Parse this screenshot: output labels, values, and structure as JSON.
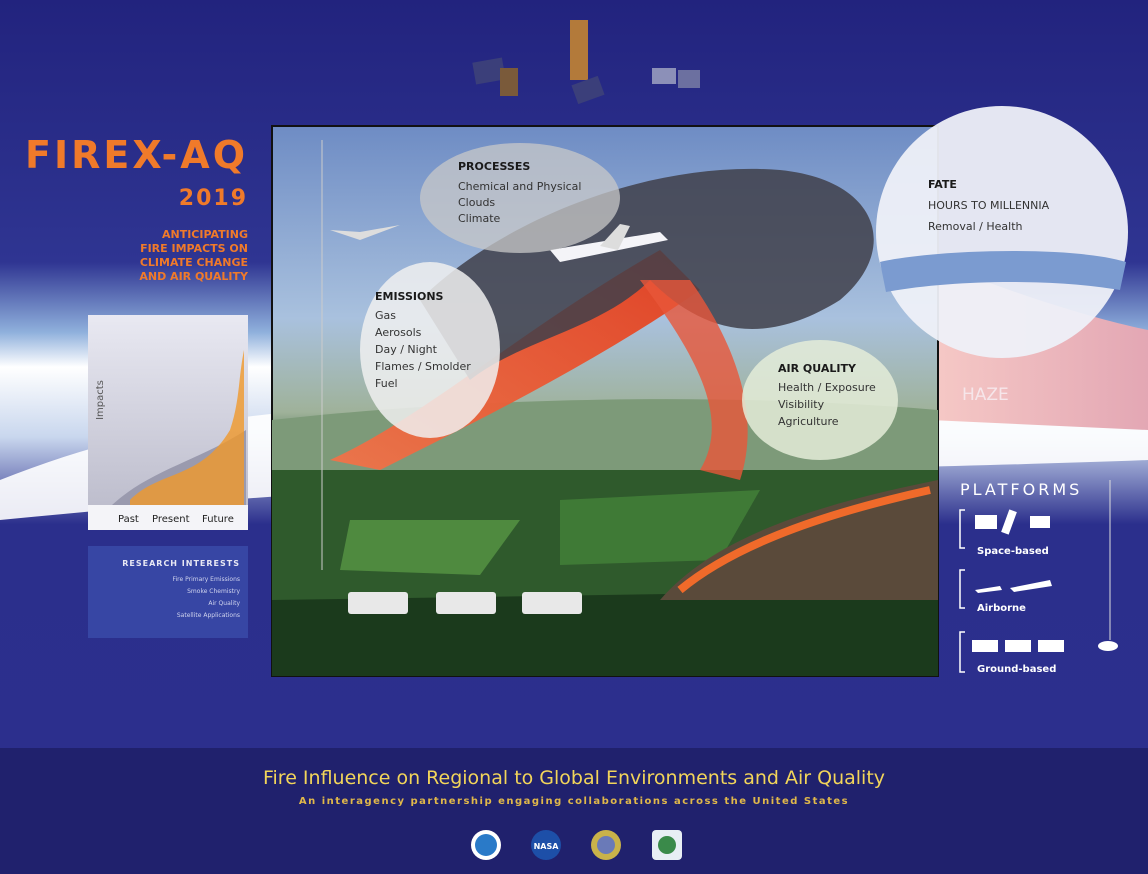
{
  "header": {
    "title": "FIREX-AQ",
    "year": "2019",
    "tagline": [
      "ANTICIPATING",
      "FIRE IMPACTS ON",
      "CLIMATE CHANGE",
      "AND AIR QUALITY"
    ]
  },
  "impacts_chart": {
    "axis_label": "Impacts",
    "categories": [
      "Past",
      "Present",
      "Future"
    ]
  },
  "research": {
    "title": "RESEARCH INTERESTS",
    "items": [
      "Fire Primary Emissions",
      "Smoke Chemistry",
      "Air Quality",
      "Satellite Applications"
    ]
  },
  "bubbles": {
    "processes": {
      "title": "PROCESSES",
      "items": [
        "Chemical and Physical",
        "Clouds",
        "Climate"
      ]
    },
    "emissions": {
      "title": "EMISSIONS",
      "items": [
        "Gas",
        "Aerosols",
        "Day / Night",
        "Flames / Smolder",
        "Fuel"
      ]
    },
    "air_quality": {
      "title": "AIR QUALITY",
      "items": [
        "Health / Exposure",
        "Visibility",
        "Agriculture"
      ]
    },
    "fate": {
      "title": "FATE",
      "items": [
        "HOURS TO MILLENNIA",
        "Removal / Health"
      ]
    }
  },
  "haze": "HAZE",
  "platforms": {
    "title": "PLATFORMS",
    "groups": [
      "Space-based",
      "Airborne",
      "Ground-based"
    ]
  },
  "footer": {
    "title": "Fire Influence on Regional to Global Environments and Air Quality",
    "subtitle": "An interagency partnership engaging collaborations across the United States",
    "logo_text": "NASA"
  }
}
